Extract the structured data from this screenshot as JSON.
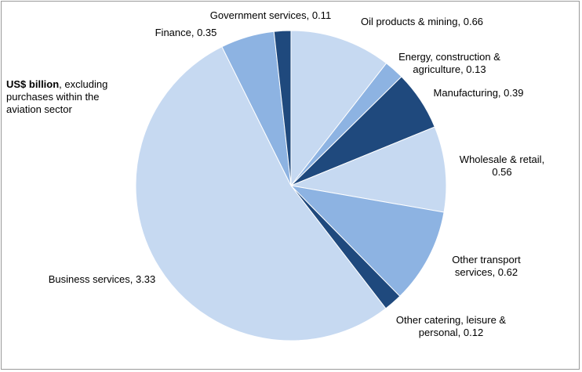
{
  "chart_data": {
    "type": "pie",
    "annotation_bold": "US$ billion",
    "annotation": ", excluding purchases within the aviation sector",
    "values": [
      0.66,
      0.13,
      0.39,
      0.56,
      0.62,
      0.12,
      3.33,
      0.35,
      0.11
    ],
    "value_labels": [
      "Oil products & mining, 0.66",
      "Energy, construction & agriculture, 0.13",
      "Manufacturing, 0.39",
      "Wholesale & retail, 0.56",
      "Other transport services, 0.62",
      "Other catering, leisure & personal, 0.12",
      "Business services, 3.33",
      "Finance, 0.35",
      "Government services, 0.11"
    ],
    "colors": [
      "#c6d9f1",
      "#8db3e2",
      "#1f497d",
      "#c6d9f1",
      "#8db3e2",
      "#1f497d",
      "#c6d9f1",
      "#8db3e2",
      "#1f497d"
    ]
  }
}
